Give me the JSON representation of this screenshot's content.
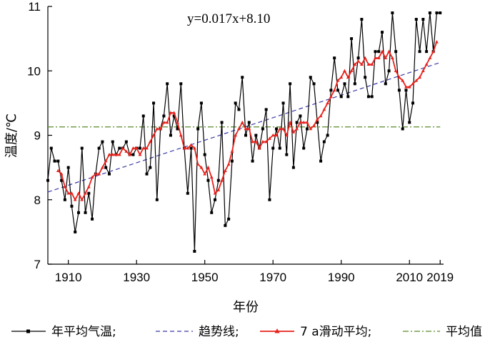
{
  "chart_data": {
    "type": "line",
    "xlabel": "年份",
    "ylabel": "温度/℃",
    "xlim": [
      1904,
      2020
    ],
    "ylim": [
      7,
      11
    ],
    "x_ticks": [
      1910,
      1930,
      1950,
      1970,
      1990,
      2010,
      2019
    ],
    "y_ticks": [
      7,
      8,
      9,
      10,
      11
    ],
    "annotation": "y=0.017x+8.10",
    "grid": false,
    "legend_position": "bottom",
    "colors": {
      "annual": "#000000",
      "trend": "#3a3aa8",
      "moving": "#e8221c",
      "mean": "#5a8a2a"
    },
    "series": [
      {
        "name": "年平均气温",
        "style": "black line with square markers",
        "x": [
          1904,
          1905,
          1906,
          1907,
          1908,
          1909,
          1910,
          1911,
          1912,
          1913,
          1914,
          1915,
          1916,
          1917,
          1918,
          1919,
          1920,
          1921,
          1922,
          1923,
          1924,
          1925,
          1926,
          1927,
          1928,
          1929,
          1930,
          1931,
          1932,
          1933,
          1934,
          1935,
          1936,
          1937,
          1938,
          1939,
          1940,
          1941,
          1942,
          1943,
          1944,
          1945,
          1946,
          1947,
          1948,
          1949,
          1950,
          1951,
          1952,
          1953,
          1954,
          1955,
          1956,
          1957,
          1958,
          1959,
          1960,
          1961,
          1962,
          1963,
          1964,
          1965,
          1966,
          1967,
          1968,
          1969,
          1970,
          1971,
          1972,
          1973,
          1974,
          1975,
          1976,
          1977,
          1978,
          1979,
          1980,
          1981,
          1982,
          1983,
          1984,
          1985,
          1986,
          1987,
          1988,
          1989,
          1990,
          1991,
          1992,
          1993,
          1994,
          1995,
          1996,
          1997,
          1998,
          1999,
          2000,
          2001,
          2002,
          2003,
          2004,
          2005,
          2006,
          2007,
          2008,
          2009,
          2010,
          2011,
          2012,
          2013,
          2014,
          2015,
          2016,
          2017,
          2018,
          2019
        ],
        "y": [
          8.3,
          8.8,
          8.6,
          8.6,
          8.3,
          8.0,
          8.5,
          7.9,
          7.5,
          7.8,
          8.8,
          7.8,
          8.1,
          7.7,
          8.4,
          8.8,
          8.9,
          8.5,
          8.4,
          8.9,
          8.7,
          8.8,
          8.8,
          8.9,
          8.7,
          8.7,
          8.8,
          8.8,
          9.3,
          8.4,
          8.5,
          9.5,
          8.0,
          9.1,
          9.3,
          9.8,
          9.0,
          9.3,
          9.1,
          9.8,
          8.8,
          8.1,
          8.8,
          7.2,
          9.1,
          9.5,
          8.7,
          8.3,
          7.8,
          8.0,
          8.3,
          9.2,
          7.6,
          7.7,
          8.6,
          9.5,
          9.4,
          9.9,
          9.0,
          9.2,
          8.6,
          9.0,
          8.8,
          9.1,
          9.4,
          8.0,
          8.8,
          9.1,
          8.8,
          9.5,
          8.7,
          9.8,
          8.5,
          9.2,
          9.3,
          8.8,
          9.1,
          9.9,
          9.8,
          9.2,
          8.6,
          8.9,
          9.0,
          9.7,
          10.2,
          9.7,
          9.6,
          9.8,
          9.6,
          10.5,
          9.8,
          10.2,
          10.8,
          9.9,
          9.6,
          9.6,
          10.3,
          10.3,
          10.6,
          9.8,
          10.0,
          10.9,
          10.3,
          9.7,
          9.1,
          9.7,
          9.2,
          9.5,
          10.8,
          10.3,
          10.8,
          10.3,
          10.9,
          10.3,
          10.9,
          10.9
        ],
        "x_visible_end": 2019
      },
      {
        "name": "趋势线",
        "style": "blue dashed",
        "equation": "y=0.017x+8.10",
        "x": [
          1904,
          2019
        ],
        "y": [
          8.12,
          10.13
        ]
      },
      {
        "name": "7 a滑动平均",
        "style": "red line with triangle markers",
        "x": [
          1907,
          1908,
          1909,
          1910,
          1911,
          1912,
          1913,
          1914,
          1915,
          1916,
          1917,
          1918,
          1919,
          1920,
          1921,
          1922,
          1923,
          1924,
          1925,
          1926,
          1927,
          1928,
          1929,
          1930,
          1931,
          1932,
          1933,
          1934,
          1935,
          1936,
          1937,
          1938,
          1939,
          1940,
          1941,
          1942,
          1943,
          1944,
          1945,
          1946,
          1947,
          1948,
          1949,
          1950,
          1951,
          1952,
          1953,
          1954,
          1955,
          1956,
          1957,
          1958,
          1959,
          1960,
          1961,
          1962,
          1963,
          1964,
          1965,
          1966,
          1967,
          1968,
          1969,
          1970,
          1971,
          1972,
          1973,
          1974,
          1975,
          1976,
          1977,
          1978,
          1979,
          1980,
          1981,
          1982,
          1983,
          1984,
          1985,
          1986,
          1987,
          1988,
          1989,
          1990,
          1991,
          1992,
          1993,
          1994,
          1995,
          1996,
          1997,
          1998,
          1999,
          2000,
          2001,
          2002,
          2003,
          2004,
          2005,
          2006,
          2007,
          2008,
          2009,
          2010,
          2011,
          2012,
          2013,
          2014,
          2015,
          2016,
          2017,
          2018
        ],
        "y": [
          8.45,
          8.4,
          8.2,
          8.1,
          8.1,
          8.0,
          8.1,
          8.0,
          8.1,
          8.2,
          8.35,
          8.4,
          8.4,
          8.5,
          8.6,
          8.7,
          8.7,
          8.7,
          8.7,
          8.8,
          8.75,
          8.7,
          8.8,
          8.8,
          8.7,
          8.8,
          8.8,
          8.9,
          9.0,
          9.1,
          9.1,
          9.2,
          9.2,
          9.35,
          9.35,
          9.2,
          9.0,
          8.8,
          8.8,
          8.85,
          8.8,
          8.55,
          8.5,
          8.4,
          8.5,
          8.35,
          8.1,
          8.15,
          8.3,
          8.45,
          8.55,
          8.75,
          9.0,
          9.1,
          9.2,
          9.1,
          9.1,
          8.9,
          8.9,
          8.8,
          8.9,
          8.9,
          8.95,
          9.0,
          9.0,
          9.1,
          9.1,
          9.0,
          9.2,
          9.05,
          9.1,
          9.2,
          9.2,
          9.2,
          9.1,
          9.15,
          9.25,
          9.3,
          9.4,
          9.5,
          9.6,
          9.7,
          9.85,
          9.9,
          10.0,
          9.9,
          10.0,
          10.1,
          10.15,
          10.1,
          10.2,
          10.1,
          10.1,
          10.2,
          10.2,
          10.3,
          10.2,
          10.3,
          10.2,
          10.0,
          9.9,
          9.85,
          9.75,
          9.75,
          9.8,
          9.85,
          9.9,
          10.0,
          10.1,
          10.2,
          10.3,
          10.45
        ]
      },
      {
        "name": "平均值",
        "style": "green dash-dot",
        "x": [
          1904,
          2019
        ],
        "y": [
          9.13,
          9.13
        ]
      }
    ]
  },
  "legend": [
    {
      "label": "年平均气温;",
      "key": "annual"
    },
    {
      "label": "趋势线;",
      "key": "trend"
    },
    {
      "label": "7 a滑动平均;",
      "key": "moving"
    },
    {
      "label": "平均值",
      "key": "mean"
    }
  ]
}
